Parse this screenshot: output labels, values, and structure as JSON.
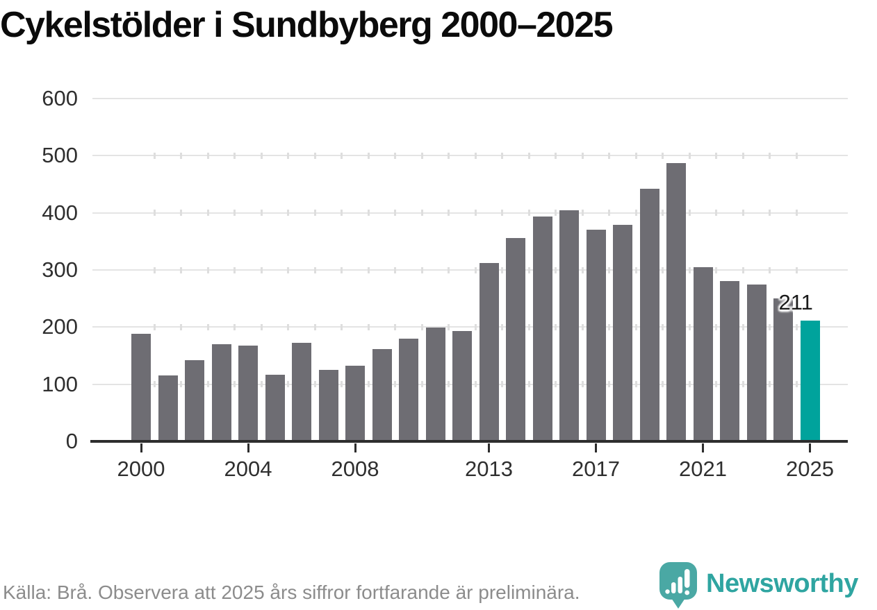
{
  "title": "Cykelstölder i Sundbyberg 2000–2025",
  "source_note": "Källa: Brå. Observera att 2025 års siffror fortfarande är preliminära.",
  "brand": {
    "name": "Newsworthy",
    "icon": "bar-chart-pin-icon"
  },
  "colors": {
    "bar": "#6e6d73",
    "highlight": "#00a39c",
    "brand_teal": "#2fa5a1",
    "grid": "#e4e4e4",
    "axis": "#2d2d2d",
    "text": "#1a1a1a",
    "muted": "#8c8c8c"
  },
  "chart_data": {
    "type": "bar",
    "title": "Cykelstölder i Sundbyberg 2000–2025",
    "xlabel": "",
    "ylabel": "",
    "x": [
      2000,
      2001,
      2002,
      2003,
      2004,
      2005,
      2006,
      2007,
      2008,
      2009,
      2010,
      2011,
      2012,
      2013,
      2014,
      2015,
      2016,
      2017,
      2018,
      2019,
      2020,
      2021,
      2022,
      2023,
      2024,
      2025
    ],
    "values": [
      188,
      116,
      142,
      170,
      168,
      117,
      172,
      125,
      133,
      162,
      180,
      199,
      193,
      312,
      356,
      394,
      404,
      370,
      379,
      442,
      487,
      305,
      281,
      274,
      250,
      211
    ],
    "highlighted_year": 2025,
    "highlight_value_label": "211",
    "x_tick_years": [
      2000,
      2004,
      2008,
      2013,
      2017,
      2021,
      2025
    ],
    "y_ticks": [
      0,
      100,
      200,
      300,
      400,
      500,
      600
    ],
    "ylim": [
      0,
      600
    ],
    "grid": "horizontal",
    "legend_position": "none"
  }
}
